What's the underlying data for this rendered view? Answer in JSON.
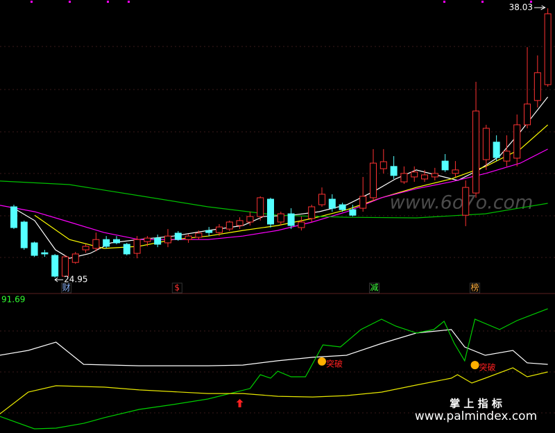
{
  "chart_data": {
    "type": "candlestick",
    "xlim": [
      -1.35,
      52.7
    ],
    "ylim": [
      24.28,
      38.43
    ],
    "up_color": "#ff3232",
    "down_color": "#54ffff",
    "open": [
      28.39,
      27.65,
      26.64,
      26.16,
      26.03,
      25.02,
      25.69,
      26.3,
      26.37,
      26.8,
      26.8,
      26.57,
      26.13,
      26.7,
      26.87,
      26.64,
      27.11,
      26.8,
      26.91,
      27.24,
      27.14,
      27.31,
      27.48,
      27.65,
      27.92,
      28.76,
      27.65,
      28.05,
      27.38,
      27.82,
      28.49,
      28.76,
      28.49,
      28.25,
      28.32,
      28.83,
      30.24,
      30.35,
      29.6,
      29.84,
      29.74,
      29.84,
      30.61,
      30.01,
      27.98,
      29.06,
      30.68,
      31.53,
      30.61,
      30.75,
      32.37,
      33.55,
      34.32
    ],
    "close": [
      27.38,
      26.4,
      26.03,
      26.1,
      25.02,
      25.96,
      26.1,
      26.47,
      26.8,
      26.47,
      26.64,
      26.1,
      26.8,
      26.87,
      26.57,
      26.97,
      26.8,
      26.97,
      27.11,
      27.14,
      27.41,
      27.65,
      27.72,
      27.92,
      28.83,
      27.55,
      28.05,
      27.48,
      27.65,
      28.39,
      29.0,
      28.32,
      28.25,
      27.98,
      28.9,
      30.51,
      30.58,
      29.91,
      30.01,
      30.08,
      29.94,
      30.01,
      30.18,
      30.18,
      29.33,
      33.04,
      32.2,
      30.78,
      31.09,
      32.37,
      33.38,
      34.9,
      37.76
    ],
    "high": [
      28.49,
      27.72,
      26.7,
      26.3,
      26.1,
      26.03,
      26.2,
      26.57,
      27.14,
      26.97,
      26.97,
      26.64,
      26.97,
      26.97,
      27.04,
      27.31,
      27.21,
      27.07,
      27.24,
      27.41,
      27.55,
      27.72,
      27.88,
      28.15,
      28.9,
      28.83,
      28.15,
      28.32,
      27.92,
      28.49,
      29.33,
      29.0,
      28.59,
      28.49,
      29.84,
      31.19,
      31.19,
      30.85,
      30.35,
      30.35,
      30.18,
      30.28,
      30.95,
      30.61,
      29.67,
      34.46,
      32.37,
      31.86,
      31.86,
      32.87,
      36.14,
      35.74,
      38.03
    ],
    "low": [
      27.31,
      26.3,
      25.96,
      25.96,
      24.95,
      25.02,
      25.62,
      26.16,
      26.23,
      26.37,
      26.57,
      26.03,
      25.89,
      26.47,
      26.43,
      26.43,
      26.74,
      26.64,
      26.8,
      26.97,
      26.97,
      27.21,
      27.31,
      27.48,
      27.72,
      27.38,
      27.48,
      27.31,
      27.24,
      27.65,
      28.39,
      28.15,
      28.15,
      27.92,
      28.15,
      28.66,
      30.01,
      29.74,
      29.5,
      29.6,
      29.6,
      29.67,
      30.08,
      29.84,
      27.45,
      28.83,
      30.18,
      30.61,
      30.35,
      30.35,
      32.2,
      33.21,
      34.22
    ],
    "high_label": "38.03",
    "low_label": "24.95",
    "watermark": "www.6o7o.com",
    "series": [
      {
        "color": "#ffffff",
        "x": [
          0,
          2.03,
          4.05,
          5.41,
          7.43,
          9.46,
          12.16,
          15.54,
          18.92,
          22.3,
          24.32,
          27.03,
          29.73,
          32.43,
          35.14,
          37.16,
          39.19,
          41.89,
          43.24,
          45.27,
          47.3,
          49.32,
          52
        ],
        "values": [
          28.32,
          27.72,
          26.3,
          25.89,
          26.13,
          26.64,
          26.8,
          26.97,
          27.24,
          27.48,
          27.92,
          27.98,
          28.15,
          28.49,
          29.16,
          29.74,
          30.18,
          29.84,
          29.67,
          30.18,
          30.85,
          32.03,
          33.72
        ]
      },
      {
        "color": "#ffff00",
        "x": [
          2.03,
          5.41,
          8.78,
          12.16,
          15.54,
          18.92,
          22.3,
          25.68,
          29.05,
          32.43,
          35.81,
          39.19,
          42.57,
          45.95,
          49.32,
          52
        ],
        "values": [
          27.98,
          26.8,
          26.37,
          26.47,
          26.8,
          26.97,
          27.24,
          27.48,
          27.82,
          28.25,
          28.83,
          29.33,
          29.74,
          30.35,
          31.19,
          32.37
        ]
      },
      {
        "color": "#ff00ff",
        "x": [
          -1.35,
          2.03,
          5.41,
          8.78,
          12.16,
          15.54,
          18.92,
          22.3,
          25.68,
          29.05,
          32.43,
          35.81,
          39.19,
          42.57,
          45.95,
          49.32,
          52
        ],
        "values": [
          28.46,
          28.15,
          27.65,
          27.14,
          26.8,
          26.8,
          26.8,
          26.97,
          27.24,
          27.65,
          28.15,
          28.83,
          29.27,
          29.6,
          30.01,
          30.51,
          31.19
        ]
      },
      {
        "color": "#00c000",
        "x": [
          -1.35,
          5.4,
          12.2,
          18.9,
          25.7,
          32.4,
          39.2,
          45.9,
          52
        ],
        "values": [
          29.64,
          29.47,
          28.93,
          28.39,
          27.98,
          27.88,
          27.85,
          28.05,
          28.56
        ]
      }
    ],
    "events": [
      {
        "x": 5.1,
        "label": "财",
        "color": "#8fb8ff"
      },
      {
        "x": 15.9,
        "label": "$",
        "color": "#ff3232"
      },
      {
        "x": 35.1,
        "label": "减",
        "color": "#40ff40"
      },
      {
        "x": 44.9,
        "label": "榜",
        "color": "#ffb040"
      }
    ],
    "indicator": {
      "ylim": [
        0,
        100
      ],
      "max_label": "91.69",
      "series": [
        {
          "color": "#ffffff",
          "x": [
            -1.4,
            1.4,
            4.1,
            6.8,
            12.2,
            18.9,
            22.3,
            25.7,
            29.1,
            32.4,
            35.8,
            39.2,
            42.6,
            43.9,
            45.9,
            48.6,
            50.0,
            52.0
          ],
          "values": [
            56.3,
            59.8,
            65.8,
            49.7,
            48.7,
            48.7,
            49.2,
            52.3,
            54.8,
            56.3,
            64.8,
            72.4,
            74.9,
            62.3,
            56.3,
            59.8,
            50.8,
            49.7
          ]
        },
        {
          "color": "#00d000",
          "x": [
            -1.4,
            2.0,
            4.1,
            6.8,
            8.8,
            12.2,
            15.5,
            18.9,
            23.0,
            24.0,
            25.0,
            25.7,
            27.0,
            28.4,
            30.1,
            31.8,
            33.8,
            35.8,
            37.2,
            39.2,
            40.9,
            41.9,
            42.9,
            43.9,
            44.9,
            47.3,
            49.0,
            52.0
          ],
          "values": [
            12.1,
            3.0,
            3.5,
            7.0,
            11.1,
            17.1,
            20.6,
            24.6,
            32.2,
            42.2,
            39.7,
            44.7,
            40.7,
            40.7,
            63.8,
            62.3,
            74.9,
            82.4,
            77.4,
            72.4,
            74.9,
            80.9,
            64.8,
            52.3,
            82.4,
            74.9,
            81.4,
            90.0
          ]
        },
        {
          "color": "#e8e800",
          "x": [
            -1.4,
            1.4,
            4.1,
            8.8,
            12.2,
            18.9,
            22.3,
            25.7,
            29.1,
            32.4,
            35.8,
            39.2,
            42.6,
            43.2,
            44.6,
            45.9,
            48.6,
            50.0,
            52.0
          ],
          "values": [
            13.6,
            29.6,
            34.2,
            33.2,
            31.2,
            28.6,
            28.6,
            26.6,
            26.1,
            27.1,
            29.6,
            34.7,
            39.7,
            42.2,
            36.2,
            39.7,
            47.2,
            40.7,
            44.2
          ]
        }
      ],
      "breakouts": [
        {
          "x": 30.0,
          "y": 51.8,
          "label": "突破"
        },
        {
          "x": 44.9,
          "y": 49.2,
          "label": "突破"
        }
      ],
      "signals": [
        {
          "x": 22.0,
          "y": 24.6
        }
      ]
    },
    "footer": {
      "title": "掌 上 指 标",
      "url": "www.palmindex.com"
    }
  }
}
